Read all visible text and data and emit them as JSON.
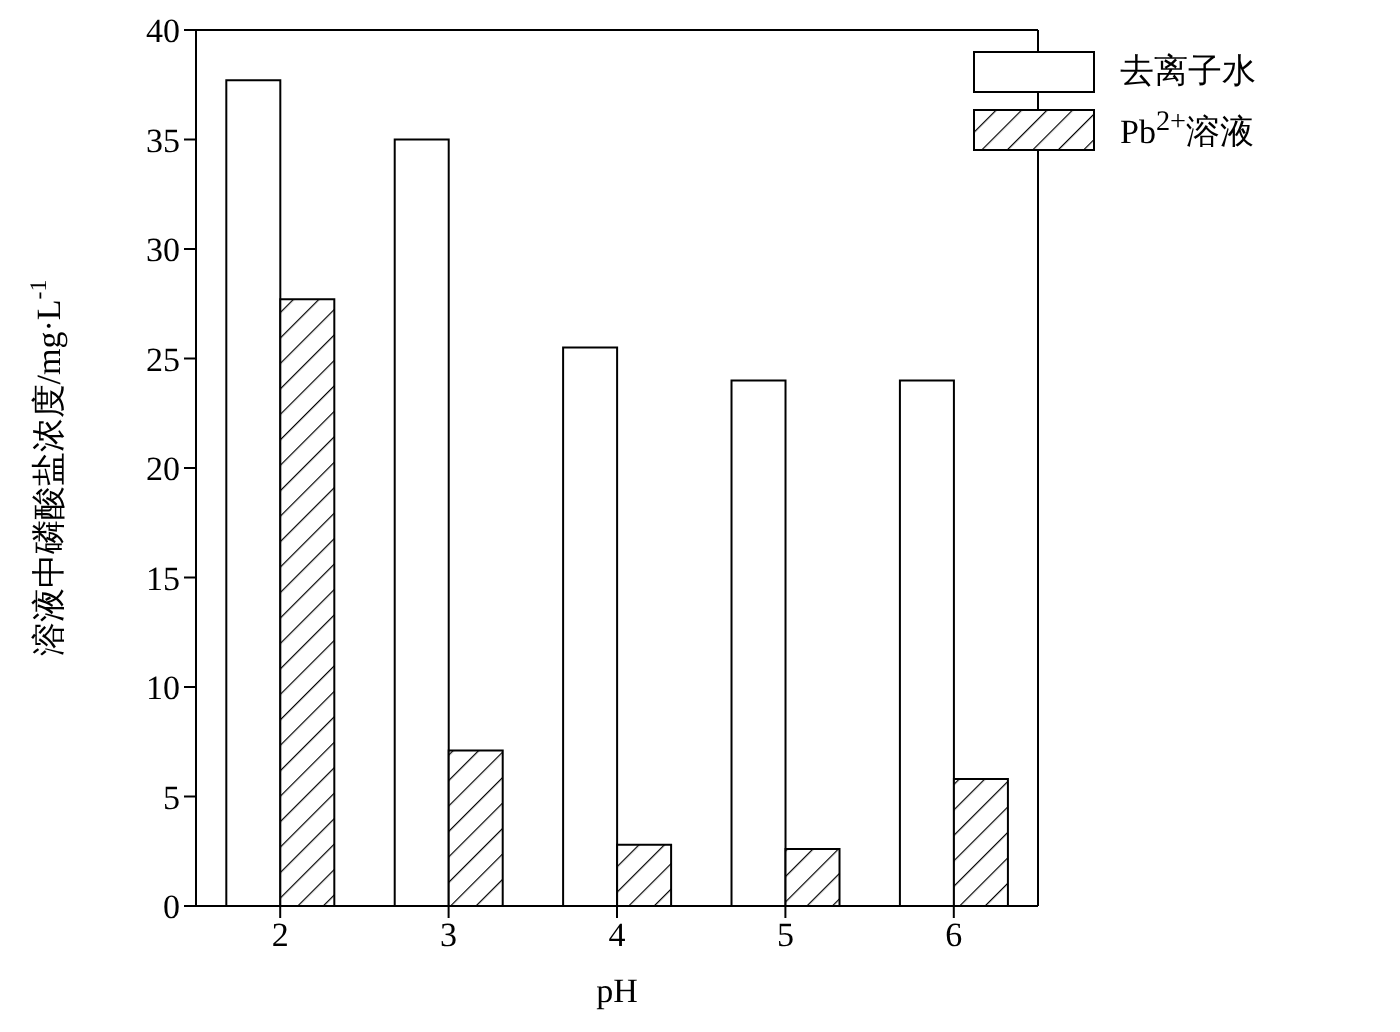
{
  "chart_data": {
    "type": "bar",
    "xlabel": "pH",
    "ylabel": "溶液中磷酸盐浓度/mg·L$^{-1}$",
    "categories": [
      "2",
      "3",
      "4",
      "5",
      "6"
    ],
    "series": [
      {
        "name": "去离子水",
        "color": "#ffffff",
        "values": [
          37.7,
          35.0,
          25.5,
          24.0,
          24.0
        ]
      },
      {
        "name": "Pb$^{2+}$溶液",
        "color": "#000000",
        "values": [
          27.7,
          7.1,
          2.8,
          2.6,
          5.8
        ]
      }
    ],
    "ylim": [
      0,
      40
    ],
    "yticks": [
      0,
      5,
      10,
      15,
      20,
      25,
      30,
      35,
      40
    ],
    "legend": "top right"
  }
}
